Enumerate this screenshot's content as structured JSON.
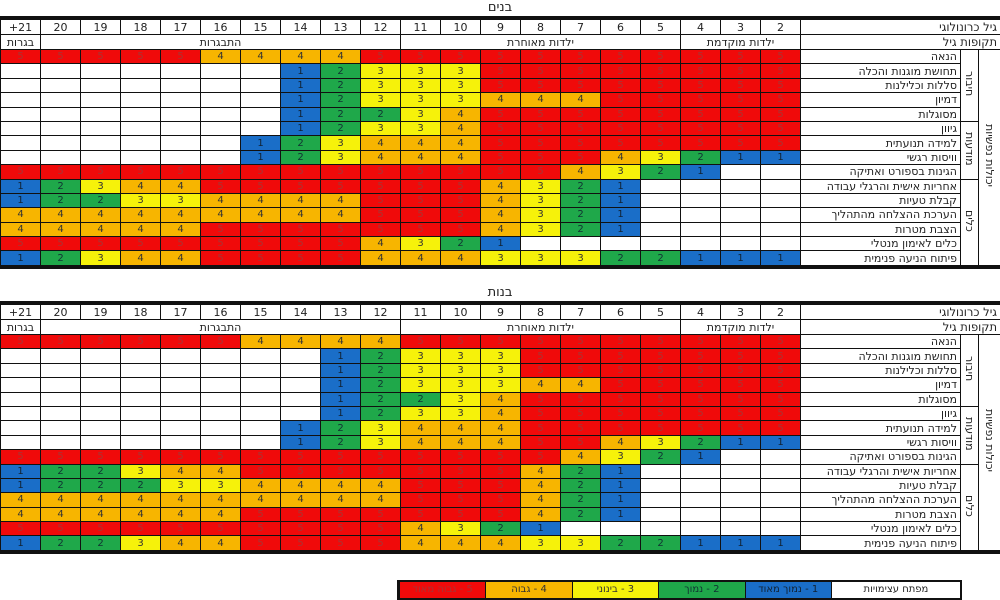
{
  "colors": {
    "1": "#1a6ec8",
    "2": "#1fa84a",
    "3": "#f6f20a",
    "4": "#f7b500",
    "5": "#f00a0a",
    "empty": "#ffffff"
  },
  "header": {
    "age_label": "גיל כרונולוגי",
    "period_label": "תקופות גיל",
    "ages": [
      "+21",
      "20",
      "19",
      "18",
      "17",
      "16",
      "15",
      "14",
      "13",
      "12",
      "11",
      "10",
      "9",
      "8",
      "7",
      "6",
      "5",
      "4",
      "3",
      "2"
    ],
    "periods": [
      {
        "label": "בגרות",
        "span": 1
      },
      {
        "label": "התבגרות",
        "span": 9
      },
      {
        "label": "ילדות מאוחרת",
        "span": 7
      },
      {
        "label": "ילדות מוקדמת",
        "span": 3
      }
    ]
  },
  "outer_group": "יכולות נפשיות",
  "groups": [
    {
      "label": "חיבור",
      "rows": 5
    },
    {
      "label": "מודעות",
      "rows": 4
    },
    {
      "label": "כלים",
      "rows": 6
    }
  ],
  "row_labels": [
    "הנאה",
    "תחושת מוגנות והכלה",
    "סללות וכלילנות",
    "דמיון",
    "מסוגלות",
    "גיוון",
    "למידה תנועתית",
    "וויסות רגשי",
    "הגינות בספורט ואתיקה",
    "אחריות אישית והרגלי עבודה",
    "קבלת טעיות",
    "הערכת ההצלחה מהתהליך",
    "הצבת מטרות",
    "כלים לאימון מנטלי",
    "פיתוח הניעה פנימית"
  ],
  "legend": {
    "title": "מפתח עצימויות",
    "items": [
      "1 - נמוך מאוד",
      "2 - נמוך",
      "3 - בינוני",
      "4 - גבוה",
      "5 - גבוה מאוד"
    ]
  },
  "chart_data": [
    {
      "type": "heatmap",
      "title": "בנים",
      "x": [
        "+21",
        "20",
        "19",
        "18",
        "17",
        "16",
        "15",
        "14",
        "13",
        "12",
        "11",
        "10",
        "9",
        "8",
        "7",
        "6",
        "5",
        "4",
        "3",
        "2"
      ],
      "y": [
        "הנאה",
        "תחושת מוגנות והכלה",
        "סללות וכלילנות",
        "דמיון",
        "מסוגלות",
        "גיוון",
        "למידה תנועתית",
        "וויסות רגשי",
        "הגינות בספורט ואתיקה",
        "אחריות אישית והרגלי עבודה",
        "קבלת טעיות",
        "הערכת ההצלחה מהתהליך",
        "הצבת מטרות",
        "כלים לאימון מנטלי",
        "פיתוח הניעה פנימית"
      ],
      "values": [
        [
          5,
          5,
          5,
          5,
          5,
          4,
          4,
          4,
          4,
          5,
          5,
          5,
          5,
          5,
          5,
          5,
          5,
          5,
          5,
          5
        ],
        [
          0,
          0,
          0,
          0,
          0,
          0,
          0,
          1,
          2,
          3,
          3,
          3,
          5,
          5,
          5,
          5,
          5,
          5,
          5,
          5
        ],
        [
          0,
          0,
          0,
          0,
          0,
          0,
          0,
          1,
          2,
          3,
          3,
          3,
          5,
          5,
          5,
          5,
          5,
          5,
          5,
          5
        ],
        [
          0,
          0,
          0,
          0,
          0,
          0,
          0,
          1,
          2,
          3,
          3,
          3,
          4,
          4,
          4,
          5,
          5,
          5,
          5,
          5
        ],
        [
          0,
          0,
          0,
          0,
          0,
          0,
          0,
          1,
          2,
          2,
          3,
          4,
          5,
          5,
          5,
          5,
          5,
          5,
          5,
          5
        ],
        [
          0,
          0,
          0,
          0,
          0,
          0,
          0,
          1,
          2,
          3,
          3,
          4,
          5,
          5,
          5,
          5,
          5,
          5,
          5,
          5
        ],
        [
          0,
          0,
          0,
          0,
          0,
          0,
          1,
          2,
          3,
          4,
          4,
          4,
          5,
          5,
          5,
          5,
          5,
          5,
          5,
          5
        ],
        [
          0,
          0,
          0,
          0,
          0,
          0,
          1,
          2,
          3,
          4,
          4,
          4,
          5,
          5,
          5,
          4,
          3,
          2,
          1,
          1
        ],
        [
          5,
          5,
          5,
          5,
          5,
          5,
          5,
          5,
          5,
          5,
          5,
          5,
          5,
          5,
          4,
          3,
          2,
          1,
          0,
          0
        ],
        [
          1,
          2,
          3,
          4,
          4,
          5,
          5,
          5,
          5,
          5,
          5,
          5,
          4,
          3,
          2,
          1,
          0,
          0,
          0,
          0
        ],
        [
          1,
          2,
          2,
          3,
          3,
          4,
          4,
          4,
          4,
          5,
          5,
          5,
          4,
          3,
          2,
          1,
          0,
          0,
          0,
          0
        ],
        [
          4,
          4,
          4,
          4,
          4,
          4,
          4,
          4,
          4,
          5,
          5,
          5,
          4,
          3,
          2,
          1,
          0,
          0,
          0,
          0
        ],
        [
          4,
          4,
          4,
          4,
          4,
          5,
          5,
          5,
          5,
          5,
          5,
          5,
          4,
          3,
          2,
          1,
          0,
          0,
          0,
          0
        ],
        [
          5,
          5,
          5,
          5,
          5,
          5,
          5,
          5,
          5,
          4,
          3,
          2,
          1,
          0,
          0,
          0,
          0,
          0,
          0,
          0
        ],
        [
          1,
          2,
          3,
          4,
          4,
          5,
          5,
          5,
          5,
          4,
          4,
          4,
          3,
          3,
          3,
          2,
          2,
          1,
          1,
          1
        ]
      ],
      "note": "0 = empty cell"
    },
    {
      "type": "heatmap",
      "title": "בנות",
      "x": [
        "+21",
        "20",
        "19",
        "18",
        "17",
        "16",
        "15",
        "14",
        "13",
        "12",
        "11",
        "10",
        "9",
        "8",
        "7",
        "6",
        "5",
        "4",
        "3",
        "2"
      ],
      "y": [
        "הנאה",
        "תחושת מוגנות והכלה",
        "סללות וכלילנות",
        "דמיון",
        "מסוגלות",
        "גיוון",
        "למידה תנועתית",
        "וויסות רגשי",
        "הגינות בספורט ואתיקה",
        "אחריות אישית והרגלי עבודה",
        "קבלת טעיות",
        "הערכת ההצלחה מהתהליך",
        "הצבת מטרות",
        "כלים לאימון מנטלי",
        "פיתוח הניעה פנימית"
      ],
      "values": [
        [
          5,
          5,
          5,
          5,
          5,
          5,
          4,
          4,
          4,
          4,
          5,
          5,
          5,
          5,
          5,
          5,
          5,
          5,
          5,
          5
        ],
        [
          0,
          0,
          0,
          0,
          0,
          0,
          0,
          0,
          1,
          2,
          3,
          3,
          3,
          5,
          5,
          5,
          5,
          5,
          5,
          5
        ],
        [
          0,
          0,
          0,
          0,
          0,
          0,
          0,
          0,
          1,
          2,
          3,
          3,
          3,
          5,
          5,
          5,
          5,
          5,
          5,
          5
        ],
        [
          0,
          0,
          0,
          0,
          0,
          0,
          0,
          0,
          1,
          2,
          3,
          3,
          3,
          4,
          4,
          5,
          5,
          5,
          5,
          5
        ],
        [
          0,
          0,
          0,
          0,
          0,
          0,
          0,
          0,
          1,
          2,
          2,
          3,
          4,
          5,
          5,
          5,
          5,
          5,
          5,
          5
        ],
        [
          0,
          0,
          0,
          0,
          0,
          0,
          0,
          0,
          1,
          2,
          3,
          3,
          4,
          5,
          5,
          5,
          5,
          5,
          5,
          5
        ],
        [
          0,
          0,
          0,
          0,
          0,
          0,
          0,
          1,
          2,
          3,
          4,
          4,
          4,
          5,
          5,
          5,
          5,
          5,
          5,
          5
        ],
        [
          0,
          0,
          0,
          0,
          0,
          0,
          0,
          1,
          2,
          3,
          4,
          4,
          4,
          5,
          5,
          4,
          3,
          2,
          1,
          1
        ],
        [
          5,
          5,
          5,
          5,
          5,
          5,
          5,
          5,
          5,
          5,
          5,
          5,
          5,
          5,
          4,
          3,
          2,
          1,
          0,
          0
        ],
        [
          1,
          2,
          2,
          3,
          4,
          4,
          5,
          5,
          5,
          5,
          5,
          5,
          5,
          4,
          2,
          1,
          0,
          0,
          0,
          0
        ],
        [
          1,
          2,
          2,
          2,
          3,
          3,
          4,
          4,
          4,
          4,
          5,
          5,
          5,
          4,
          2,
          1,
          0,
          0,
          0,
          0
        ],
        [
          4,
          4,
          4,
          4,
          4,
          4,
          4,
          4,
          4,
          4,
          5,
          5,
          5,
          4,
          2,
          1,
          0,
          0,
          0,
          0
        ],
        [
          4,
          4,
          4,
          4,
          4,
          4,
          5,
          5,
          5,
          5,
          5,
          5,
          5,
          4,
          2,
          1,
          0,
          0,
          0,
          0
        ],
        [
          5,
          5,
          5,
          5,
          5,
          5,
          5,
          5,
          5,
          5,
          4,
          3,
          2,
          1,
          0,
          0,
          0,
          0,
          0,
          0
        ],
        [
          1,
          2,
          2,
          3,
          4,
          4,
          5,
          5,
          5,
          5,
          4,
          4,
          4,
          3,
          3,
          2,
          2,
          1,
          1,
          1
        ]
      ],
      "note": "0 = empty cell"
    }
  ]
}
